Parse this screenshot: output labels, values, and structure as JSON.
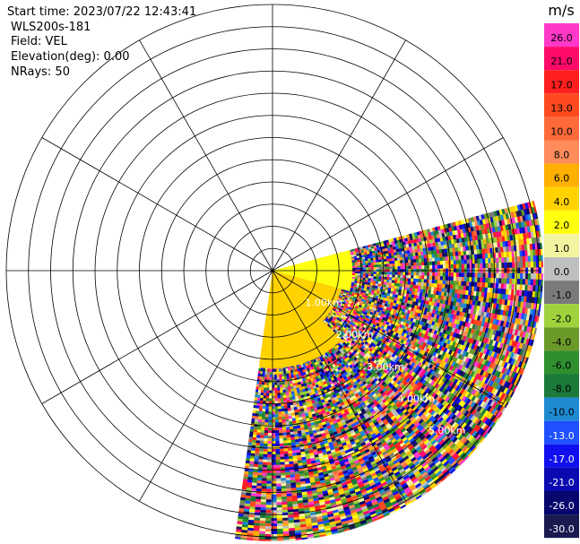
{
  "header": {
    "start_time": "Start time: 2023/07/22 12:43:41",
    "instrument": "WLS200s-181",
    "field": "Field: VEL",
    "elevation": "Elevation(deg): 0.00",
    "nrays": "NRays: 50"
  },
  "chart_data": {
    "type": "heatmap",
    "projection": "polar-ppi",
    "range_max_km": 6,
    "range_rings_km": [
      0.5,
      1,
      1.5,
      2,
      2.5,
      3,
      3.5,
      4,
      4.5,
      5,
      5.5,
      6
    ],
    "ring_labels": [
      "1.00km",
      "2.00km",
      "3.00km",
      "4.00km",
      "5.00km"
    ],
    "ring_label_range_km": [
      1,
      2,
      3,
      4,
      5
    ],
    "ring_label_bearing_deg": 136,
    "spokes_deg": [
      0,
      30,
      60,
      90,
      120,
      150,
      180,
      210,
      240,
      270,
      300,
      330
    ],
    "sector_azimuth_deg": [
      75,
      188
    ],
    "sector_max_range_km": 6.1,
    "near_field": [
      {
        "from_az": 75,
        "to_az": 105,
        "range_km": [
          0,
          1.8
        ],
        "value": 3
      },
      {
        "from_az": 105,
        "to_az": 135,
        "range_km": [
          0,
          1.6
        ],
        "value": 5
      },
      {
        "from_az": 135,
        "to_az": 188,
        "range_km": [
          0,
          2.2
        ],
        "value": 5
      }
    ],
    "colorbar": {
      "unit": "m/s",
      "ticks": [
        "26.0",
        "21.0",
        "17.0",
        "13.0",
        "10.0",
        "8.0",
        "6.0",
        "4.0",
        "2.0",
        "1.0",
        "0.0",
        "-1.0",
        "-2.0",
        "-4.0",
        "-6.0",
        "-8.0",
        "-10.0",
        "-13.0",
        "-17.0",
        "-21.0",
        "-26.0",
        "-30.0"
      ],
      "colors": [
        "#ff38c8",
        "#ff0a6a",
        "#ff1f1f",
        "#ff4a1f",
        "#ff6a3a",
        "#ff8c5a",
        "#ffb000",
        "#ffd200",
        "#ffff10",
        "#f4f4a0",
        "#bfbfbf",
        "#7a7a7a",
        "#9fd23c",
        "#6b9a28",
        "#2f8f2f",
        "#1a7a3a",
        "#1e8ad2",
        "#1e50ff",
        "#1010ee",
        "#0a0ab0",
        "#06066e",
        "#1a1a50"
      ]
    }
  }
}
